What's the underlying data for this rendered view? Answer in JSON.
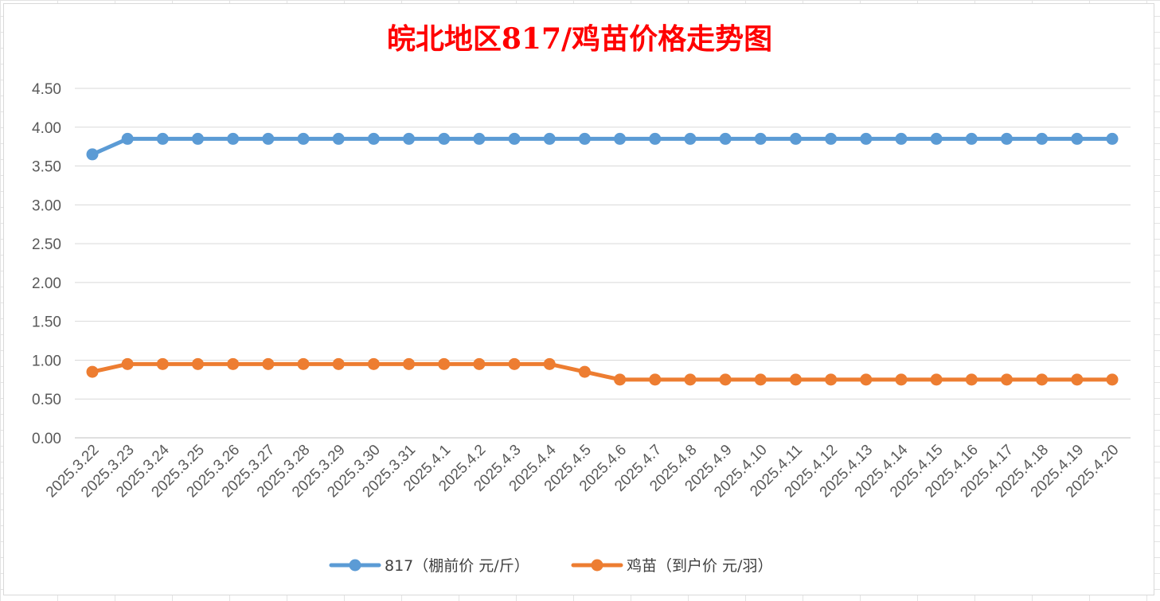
{
  "chart_data": {
    "type": "line",
    "title": "皖北地区817/鸡苗价格走势图",
    "xlabel": "",
    "ylabel": "",
    "ylim": [
      0,
      4.5
    ],
    "yticks": [
      "0.00",
      "0.50",
      "1.00",
      "1.50",
      "2.00",
      "2.50",
      "3.00",
      "3.50",
      "4.00",
      "4.50"
    ],
    "grid": true,
    "legend_position": "bottom",
    "categories": [
      "2025.3.22",
      "2025.3.23",
      "2025.3.24",
      "2025.3.25",
      "2025.3.26",
      "2025.3.27",
      "2025.3.28",
      "2025.3.29",
      "2025.3.30",
      "2025.3.31",
      "2025.4.1",
      "2025.4.2",
      "2025.4.3",
      "2025.4.4",
      "2025.4.5",
      "2025.4.6",
      "2025.4.7",
      "2025.4.8",
      "2025.4.9",
      "2025.4.10",
      "2025.4.11",
      "2025.4.12",
      "2025.4.13",
      "2025.4.14",
      "2025.4.15",
      "2025.4.16",
      "2025.4.17",
      "2025.4.18",
      "2025.4.19",
      "2025.4.20"
    ],
    "series": [
      {
        "name": "817（棚前价 元/斤）",
        "color": "#5b9bd5",
        "values": [
          3.65,
          3.85,
          3.85,
          3.85,
          3.85,
          3.85,
          3.85,
          3.85,
          3.85,
          3.85,
          3.85,
          3.85,
          3.85,
          3.85,
          3.85,
          3.85,
          3.85,
          3.85,
          3.85,
          3.85,
          3.85,
          3.85,
          3.85,
          3.85,
          3.85,
          3.85,
          3.85,
          3.85,
          3.85,
          3.85
        ]
      },
      {
        "name": "鸡苗（到户价 元/羽）",
        "color": "#ed7d31",
        "values": [
          0.85,
          0.95,
          0.95,
          0.95,
          0.95,
          0.95,
          0.95,
          0.95,
          0.95,
          0.95,
          0.95,
          0.95,
          0.95,
          0.95,
          0.85,
          0.75,
          0.75,
          0.75,
          0.75,
          0.75,
          0.75,
          0.75,
          0.75,
          0.75,
          0.75,
          0.75,
          0.75,
          0.75,
          0.75,
          0.75
        ]
      }
    ]
  }
}
